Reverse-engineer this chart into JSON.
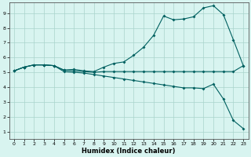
{
  "xlabel": "Humidex (Indice chaleur)",
  "xlim": [
    -0.5,
    23.5
  ],
  "ylim": [
    0.5,
    9.7
  ],
  "xticks": [
    0,
    1,
    2,
    3,
    4,
    5,
    6,
    7,
    8,
    9,
    10,
    11,
    12,
    13,
    14,
    15,
    16,
    17,
    18,
    19,
    20,
    21,
    22,
    23
  ],
  "yticks": [
    1,
    2,
    3,
    4,
    5,
    6,
    7,
    8,
    9
  ],
  "bg_color": "#cceee8",
  "plot_bg": "#d8f4f0",
  "line_color": "#006060",
  "line1_x": [
    0,
    1,
    2,
    3,
    4,
    5,
    6,
    7,
    8,
    9,
    10,
    11,
    12,
    13,
    14,
    15,
    16,
    17,
    18,
    19,
    20,
    21,
    22,
    23
  ],
  "line1_y": [
    5.1,
    5.35,
    5.5,
    5.5,
    5.45,
    5.15,
    5.1,
    5.05,
    5.0,
    5.05,
    5.05,
    5.05,
    5.05,
    5.05,
    5.05,
    5.05,
    5.05,
    5.05,
    5.05,
    5.05,
    5.05,
    5.05,
    5.05,
    5.45
  ],
  "line2_x": [
    0,
    1,
    2,
    3,
    4,
    5,
    6,
    7,
    8,
    9,
    10,
    11,
    12,
    13,
    14,
    15,
    16,
    17,
    18,
    19,
    20,
    21,
    22,
    23
  ],
  "line2_y": [
    5.1,
    5.35,
    5.5,
    5.5,
    5.45,
    5.15,
    5.2,
    5.1,
    5.05,
    5.35,
    5.6,
    5.7,
    6.15,
    6.7,
    7.5,
    8.8,
    8.55,
    8.6,
    8.75,
    9.35,
    9.5,
    8.9,
    7.2,
    5.45
  ],
  "line3_x": [
    0,
    1,
    2,
    3,
    4,
    5,
    6,
    7,
    8,
    9,
    10,
    11,
    12,
    13,
    14,
    15,
    16,
    17,
    18,
    19,
    20,
    21,
    22,
    23
  ],
  "line3_y": [
    5.1,
    5.35,
    5.5,
    5.5,
    5.45,
    5.05,
    5.0,
    4.95,
    4.85,
    4.75,
    4.65,
    4.55,
    4.45,
    4.35,
    4.25,
    4.15,
    4.05,
    3.95,
    3.95,
    3.9,
    4.2,
    3.2,
    1.75,
    1.2
  ],
  "grid_color": "#aad4cc",
  "marker": "D",
  "markersize": 2.0,
  "linewidth": 0.8
}
